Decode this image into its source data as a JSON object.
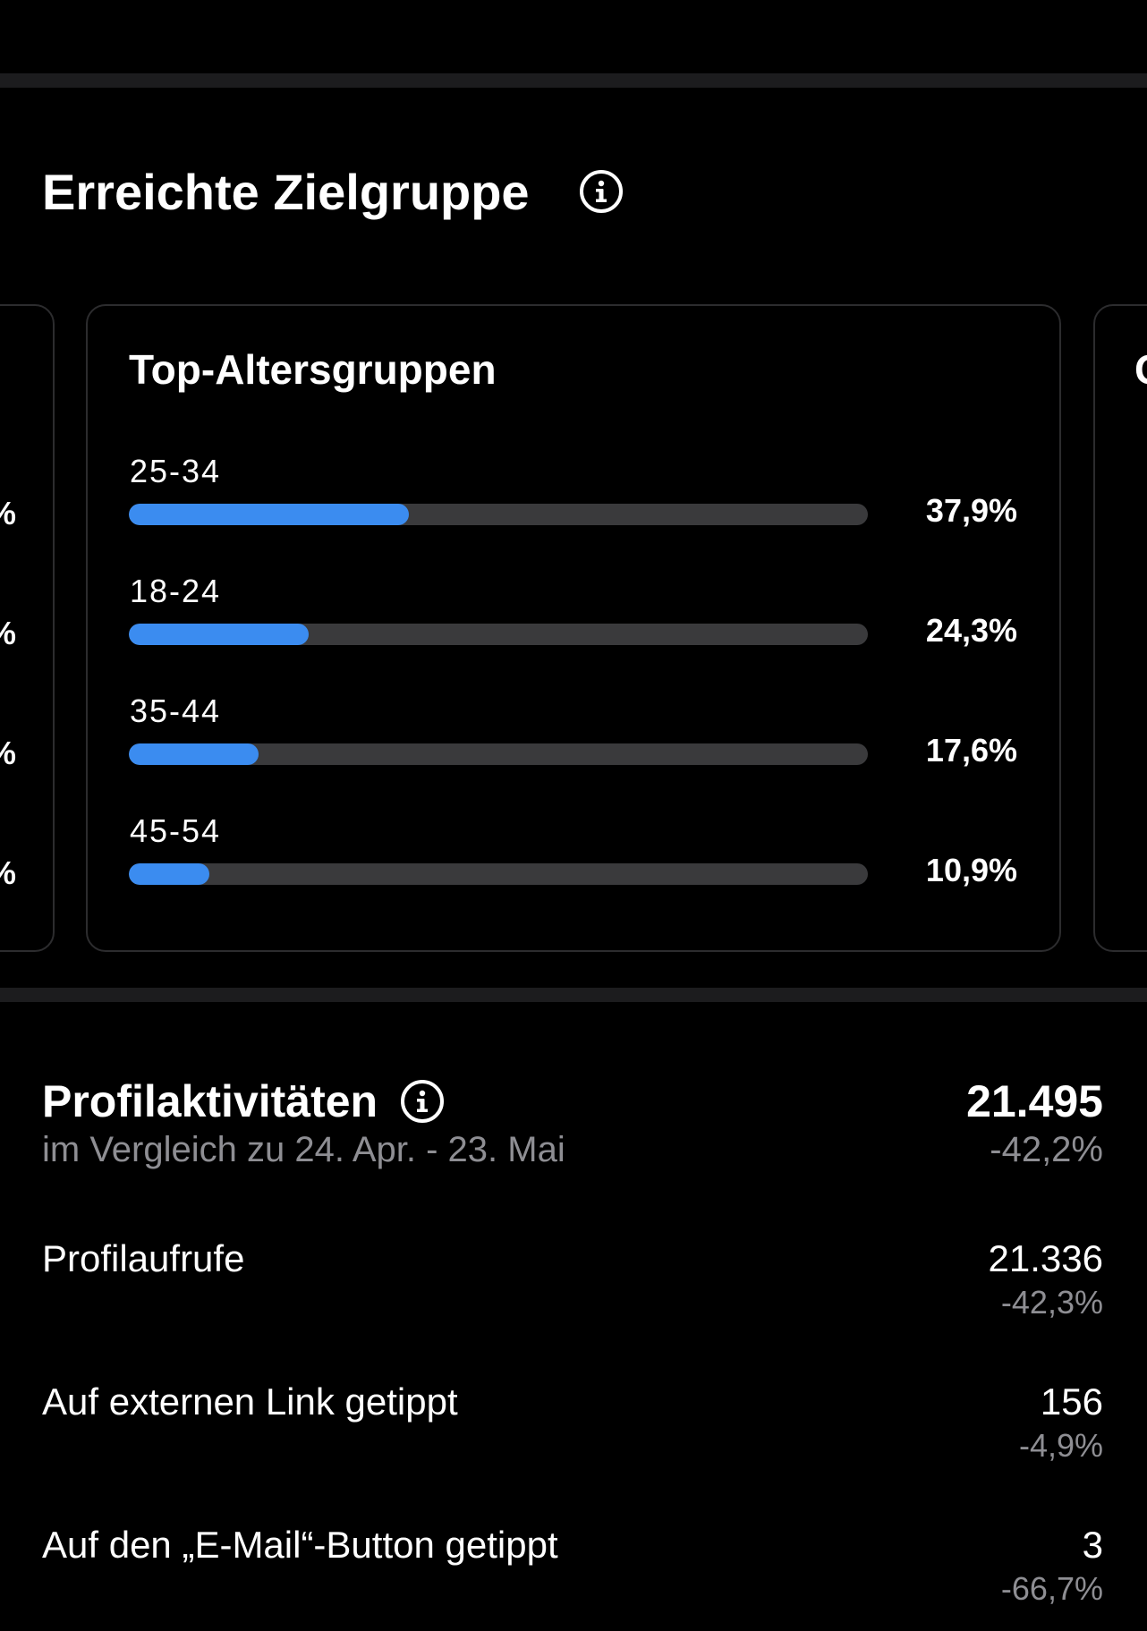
{
  "reached_audience": {
    "title": "Erreichte Zielgruppe",
    "left_card_partial_values": [
      "%",
      "%",
      "%",
      "%"
    ],
    "right_card_partial_title": "G",
    "age_card": {
      "title": "Top-Altersgruppen",
      "groups": [
        {
          "label": "25-34",
          "percent_text": "37,9%",
          "value": 37.9
        },
        {
          "label": "18-24",
          "percent_text": "24,3%",
          "value": 24.3
        },
        {
          "label": "35-44",
          "percent_text": "17,6%",
          "value": 17.6
        },
        {
          "label": "45-54",
          "percent_text": "10,9%",
          "value": 10.9
        }
      ]
    }
  },
  "profile_activity": {
    "title": "Profilaktivitäten",
    "subtitle": "im Vergleich zu 24. Apr. - 23. Mai",
    "total_value": "21.495",
    "total_change": "-42,2%",
    "metrics": [
      {
        "label": "Profilaufrufe",
        "value": "21.336",
        "change": "-42,3%"
      },
      {
        "label": "Auf externen Link getippt",
        "value": "156",
        "change": "-4,9%"
      },
      {
        "label": "Auf den „E-Mail“-Button getippt",
        "value": "3",
        "change": "-66,7%"
      }
    ]
  },
  "colors": {
    "background": "#000000",
    "divider": "#1c1c1e",
    "bar_track": "#3a3a3c",
    "bar_fill": "#3b8cf0",
    "secondary_text": "#8e8e93"
  },
  "icons": {
    "section_info": "info-icon"
  }
}
